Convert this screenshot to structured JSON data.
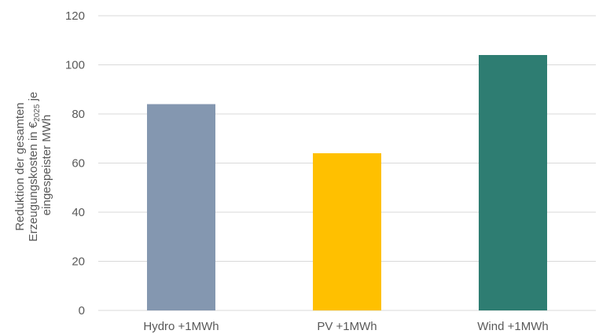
{
  "chart_data": {
    "type": "bar",
    "categories": [
      "Hydro +1MWh",
      "PV +1MWh",
      "Wind +1MWh"
    ],
    "values": [
      84,
      64,
      104
    ],
    "colors": [
      "#8497B0",
      "#FFC000",
      "#2E7D72"
    ],
    "ylabel_lines": [
      "Reduktion der gesamten",
      "Erzeugungskosten in €",
      "2025",
      " je",
      "eingespeister MWh"
    ],
    "ylim": [
      0,
      120
    ],
    "yticks": [
      0,
      20,
      40,
      60,
      80,
      100,
      120
    ],
    "grid": true,
    "gridline_color": "#D9D9D9"
  }
}
